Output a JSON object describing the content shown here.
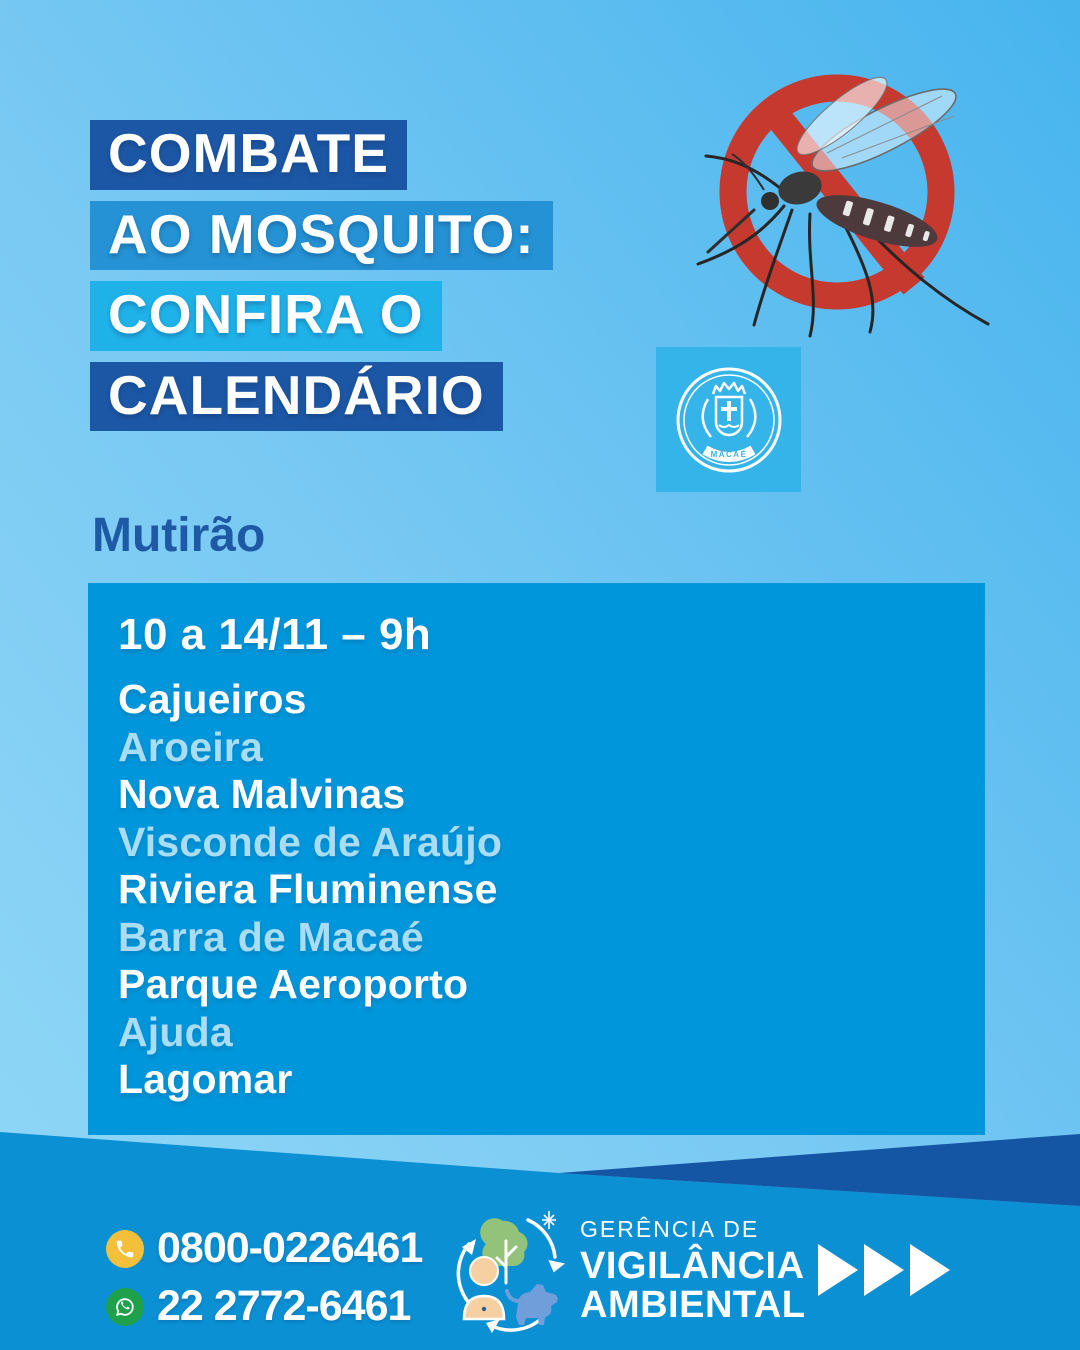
{
  "title": {
    "line1": "COMBATE",
    "line2": "AO MOSQUITO:",
    "line3": "CONFIRA O",
    "line4": "CALENDÁRIO"
  },
  "section_heading": "Mutirão",
  "schedule": {
    "date_range": "10 a 14/11 – 9h",
    "locations": [
      {
        "name": "Cajueiros",
        "highlight": false
      },
      {
        "name": "Aroeira",
        "highlight": true
      },
      {
        "name": "Nova Malvinas",
        "highlight": false
      },
      {
        "name": "Visconde de Araújo",
        "highlight": true
      },
      {
        "name": "Riviera Fluminense",
        "highlight": false
      },
      {
        "name": "Barra de Macaé",
        "highlight": true
      },
      {
        "name": "Parque Aeroporto",
        "highlight": false
      },
      {
        "name": "Ajuda",
        "highlight": true
      },
      {
        "name": "Lagomar",
        "highlight": false
      }
    ]
  },
  "crest": {
    "city": "MACAÉ"
  },
  "footer": {
    "phone": "0800-0226461",
    "whatsapp": "22 2772-6461",
    "org_small": "GERÊNCIA DE",
    "org_line1": "VIGILÂNCIA",
    "org_line2": "AMBIENTAL"
  },
  "icons": {
    "prohibition": "no-mosquito-sign",
    "phone": "phone-icon",
    "whatsapp": "whatsapp-icon",
    "arrows": "triple-play-arrows"
  },
  "colors": {
    "band_dark_blue": "#1c57a5",
    "band_medium_blue": "#2492d4",
    "band_light_blue": "#1fb2e9",
    "schedule_box_blue": "#0096db",
    "highlight_item_blue": "#a9ddf6",
    "footer_azure": "#0b90d4",
    "footer_navy_wedge": "#1556a4",
    "crest_square_blue": "#35b4ea",
    "prohibition_red": "#c5392f",
    "phone_icon_yellow": "#f4c03c",
    "whatsapp_green": "#1fa14b",
    "heading_dark_blue": "#1e59a6"
  }
}
